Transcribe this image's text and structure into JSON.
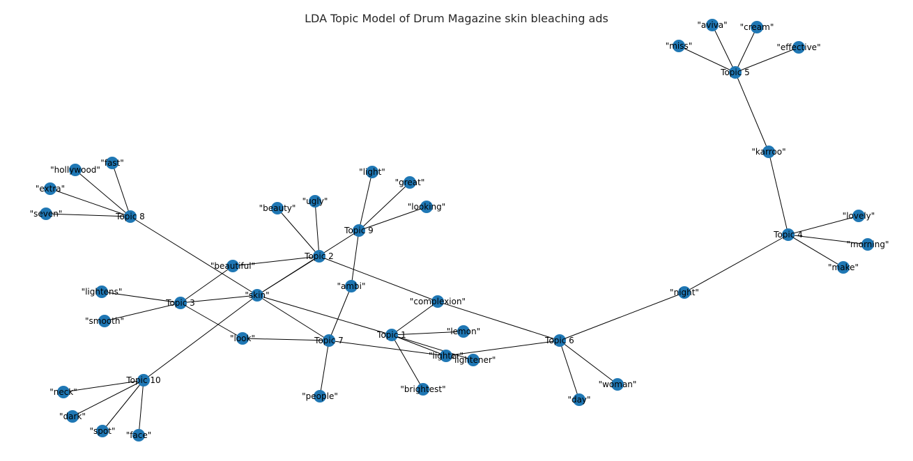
{
  "title": "LDA Topic Model of Drum Magazine skin bleaching ads",
  "node_color": "#1f77b4",
  "edge_color": "#000000",
  "nodes": [
    {
      "id": "t1",
      "label": "Topic 1"
    },
    {
      "id": "t2",
      "label": "Topic 2"
    },
    {
      "id": "t3",
      "label": "Topic 3"
    },
    {
      "id": "t4",
      "label": "Topic 4"
    },
    {
      "id": "t5",
      "label": "Topic 5"
    },
    {
      "id": "t6",
      "label": "Topic 6"
    },
    {
      "id": "t7",
      "label": "Topic 7"
    },
    {
      "id": "t8",
      "label": "Topic 8"
    },
    {
      "id": "t9",
      "label": "Topic 9"
    },
    {
      "id": "t10",
      "label": "Topic 10"
    },
    {
      "id": "aviva",
      "label": "\"aviva\""
    },
    {
      "id": "cream",
      "label": "\"cream\""
    },
    {
      "id": "miss",
      "label": "\"miss\""
    },
    {
      "id": "effective",
      "label": "\"effective\""
    },
    {
      "id": "karroo",
      "label": "\"karroo\""
    },
    {
      "id": "lovely",
      "label": "\"lovely\""
    },
    {
      "id": "morning",
      "label": "\"morning\""
    },
    {
      "id": "make",
      "label": "\"make\""
    },
    {
      "id": "night",
      "label": "\"night\""
    },
    {
      "id": "fast",
      "label": "\"fast\""
    },
    {
      "id": "hollywood",
      "label": "\"hollywood\""
    },
    {
      "id": "extra",
      "label": "\"extra\""
    },
    {
      "id": "seven",
      "label": "\"seven\""
    },
    {
      "id": "light",
      "label": "\"light\""
    },
    {
      "id": "great",
      "label": "\"great\""
    },
    {
      "id": "looking",
      "label": "\"looking\""
    },
    {
      "id": "ugly",
      "label": "\"ugly\""
    },
    {
      "id": "beauty",
      "label": "\"beauty\""
    },
    {
      "id": "beautiful",
      "label": "\"beautiful\""
    },
    {
      "id": "skin",
      "label": "\"skin\""
    },
    {
      "id": "lightens",
      "label": "\"lightens\""
    },
    {
      "id": "smooth",
      "label": "\"smooth\""
    },
    {
      "id": "ambi",
      "label": "\"ambi\""
    },
    {
      "id": "complexion",
      "label": "\"complexion\""
    },
    {
      "id": "lemon",
      "label": "\"lemon\""
    },
    {
      "id": "look",
      "label": "\"look\""
    },
    {
      "id": "lighter",
      "label": "\"lighter\""
    },
    {
      "id": "lightener",
      "label": "\"lightener\""
    },
    {
      "id": "brightest",
      "label": "\"brightest\""
    },
    {
      "id": "people",
      "label": "\"people\""
    },
    {
      "id": "woman",
      "label": "\"woman\""
    },
    {
      "id": "day",
      "label": "\"day\""
    },
    {
      "id": "neck",
      "label": "\"neck\""
    },
    {
      "id": "dark",
      "label": "\"dark\""
    },
    {
      "id": "spot",
      "label": "\"spot\""
    },
    {
      "id": "face",
      "label": "\"face\""
    }
  ],
  "edges": [
    [
      "t5",
      "aviva"
    ],
    [
      "t5",
      "cream"
    ],
    [
      "t5",
      "miss"
    ],
    [
      "t5",
      "effective"
    ],
    [
      "t5",
      "karroo"
    ],
    [
      "karroo",
      "t4"
    ],
    [
      "t4",
      "lovely"
    ],
    [
      "t4",
      "morning"
    ],
    [
      "t4",
      "make"
    ],
    [
      "t4",
      "night"
    ],
    [
      "night",
      "t6"
    ],
    [
      "t6",
      "lighter"
    ],
    [
      "t6",
      "woman"
    ],
    [
      "t6",
      "day"
    ],
    [
      "t6",
      "complexion"
    ],
    [
      "t8",
      "fast"
    ],
    [
      "t8",
      "hollywood"
    ],
    [
      "t8",
      "extra"
    ],
    [
      "t8",
      "seven"
    ],
    [
      "t8",
      "skin"
    ],
    [
      "t9",
      "light"
    ],
    [
      "t9",
      "great"
    ],
    [
      "t9",
      "looking"
    ],
    [
      "t9",
      "ambi"
    ],
    [
      "t9",
      "skin"
    ],
    [
      "t2",
      "ugly"
    ],
    [
      "t2",
      "beauty"
    ],
    [
      "t2",
      "beautiful"
    ],
    [
      "t2",
      "skin"
    ],
    [
      "t2",
      "complexion"
    ],
    [
      "t3",
      "beautiful"
    ],
    [
      "t3",
      "lightens"
    ],
    [
      "t3",
      "smooth"
    ],
    [
      "t3",
      "skin"
    ],
    [
      "t3",
      "look"
    ],
    [
      "skin",
      "t7"
    ],
    [
      "skin",
      "t1"
    ],
    [
      "skin",
      "t10"
    ],
    [
      "t7",
      "ambi"
    ],
    [
      "t7",
      "look"
    ],
    [
      "t7",
      "lighter"
    ],
    [
      "t7",
      "people"
    ],
    [
      "t1",
      "complexion"
    ],
    [
      "t1",
      "lemon"
    ],
    [
      "t1",
      "lighter"
    ],
    [
      "t1",
      "lightener"
    ],
    [
      "t1",
      "brightest"
    ],
    [
      "t10",
      "neck"
    ],
    [
      "t10",
      "dark"
    ],
    [
      "t10",
      "spot"
    ],
    [
      "t10",
      "face"
    ]
  ]
}
